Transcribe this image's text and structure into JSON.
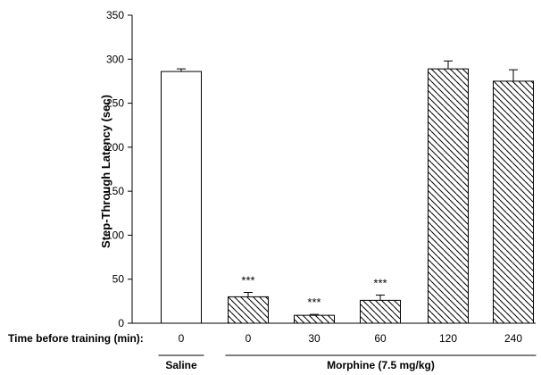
{
  "chart_data": {
    "type": "bar",
    "title": "",
    "ylabel": "Step-Through Latency (sec)",
    "xlabel": "Time before training (min):",
    "ylim": [
      0,
      350
    ],
    "yticks": [
      0,
      50,
      100,
      150,
      200,
      250,
      300,
      350
    ],
    "categories": [
      "0",
      "0",
      "30",
      "60",
      "120",
      "240"
    ],
    "values": [
      286,
      30,
      9,
      26,
      289,
      275
    ],
    "errors": [
      3,
      5,
      1,
      6,
      9,
      13
    ],
    "significance": [
      "",
      "***",
      "***",
      "***",
      "",
      ""
    ],
    "fill": [
      "open",
      "hatched",
      "hatched",
      "hatched",
      "hatched",
      "hatched"
    ],
    "groups": [
      {
        "label": "Saline",
        "start": 0,
        "end": 0
      },
      {
        "label": "Morphine (7.5 mg/kg)",
        "start": 1,
        "end": 5
      }
    ],
    "grid": false,
    "colors": {
      "bar_edge": "#000000",
      "bar_fill": "#ffffff",
      "hatch": "#000000"
    }
  }
}
